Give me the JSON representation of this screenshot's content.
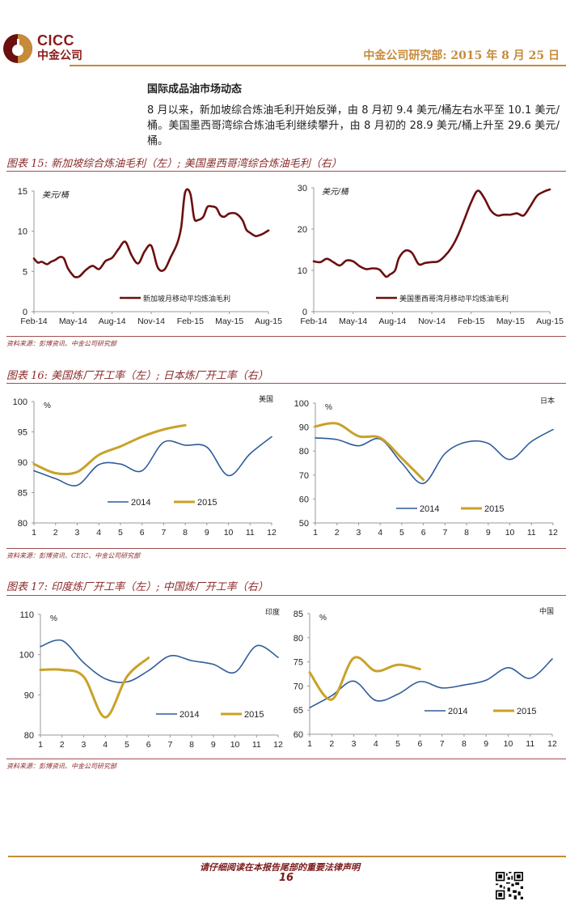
{
  "header": {
    "logo_en": "CICC",
    "logo_cn": "中金公司",
    "dept_date": "中金公司研究部: 2015 年 8 月 25 日"
  },
  "section": {
    "title": "国际成品油市场动态",
    "paragraph": "8 月以来，新加坡综合炼油毛利开始反弹，由 8 月初 9.4 美元/桶左右水平至 10.1 美元/桶。美国墨西哥湾综合炼油毛利继续攀升，由 8 月初的 28.9 美元/桶上升至 29.6 美元/桶。"
  },
  "figures": [
    {
      "title": "图表 15:  新加坡综合炼油毛利（左）; 美国墨西哥湾综合炼油毛利（右）",
      "source": "资料来源：彭博资讯、中金公司研究部"
    },
    {
      "title": "图表 16:  美国炼厂开工率（左）; 日本炼厂开工率（右）",
      "source": "资料来源：彭博资讯、CEIC、中金公司研究部"
    },
    {
      "title": "图表 17:  印度炼厂开工率（左）; 中国炼厂开工率（右）",
      "source": "资料来源：彭博资讯、中金公司研究部"
    }
  ],
  "colors": {
    "margin_line": "#6b0f0f",
    "y2014": "#2e5c9a",
    "y2015": "#c9a227",
    "accent": "#c58a3a"
  },
  "chart_data": [
    {
      "type": "line",
      "title": "新加坡月移动平均炼油毛利",
      "unit_label": "美元/桶",
      "xlabel": "",
      "ylabel": "美元/桶",
      "ylim": [
        0,
        15
      ],
      "yticks": [
        0,
        5,
        10,
        15
      ],
      "xtick_labels": [
        "Feb-14",
        "May-14",
        "Aug-14",
        "Nov-14",
        "Feb-15",
        "May-15",
        "Aug-15"
      ],
      "legend": "bottom-right",
      "series": [
        {
          "name": "新加坡月移动平均炼油毛利",
          "x": [
            0,
            0.3,
            0.6,
            1,
            1.3,
            1.6,
            2,
            2.3,
            2.6,
            3,
            3.2,
            3.5,
            4,
            4.5,
            5,
            5.5,
            6,
            6.5,
            7,
            7.5,
            8,
            8.5,
            9,
            9.5,
            10,
            10.5,
            11,
            11.3,
            11.6,
            12,
            12.3,
            12.6,
            13,
            13.3,
            13.6,
            14,
            14.3,
            14.6,
            15,
            15.5,
            16,
            16.3,
            16.6,
            17,
            17.3,
            17.6,
            18
          ],
          "values": [
            6.6,
            6.1,
            6.2,
            5.9,
            6.2,
            6.4,
            6.8,
            6.6,
            5.4,
            4.5,
            4.3,
            4.4,
            5.2,
            5.7,
            5.3,
            6.3,
            6.7,
            7.8,
            8.7,
            7.0,
            6.0,
            7.5,
            8.2,
            5.5,
            5.2,
            6.8,
            8.5,
            10.5,
            14.8,
            14.7,
            11.6,
            11.4,
            11.8,
            13.0,
            13.1,
            12.9,
            12.0,
            11.8,
            12.2,
            12.2,
            11.4,
            10.2,
            9.8,
            9.4,
            9.5,
            9.7,
            10.1
          ]
        }
      ]
    },
    {
      "type": "line",
      "title": "美国墨西哥湾月移动平均炼油毛利",
      "unit_label": "美元/桶",
      "xlabel": "",
      "ylabel": "美元/桶",
      "ylim": [
        0,
        30
      ],
      "yticks": [
        0,
        10,
        20,
        30
      ],
      "xtick_labels": [
        "Feb-14",
        "May-14",
        "Aug-14",
        "Nov-14",
        "Feb-15",
        "May-15",
        "Aug-15"
      ],
      "legend": "bottom-right",
      "series": [
        {
          "name": "美国墨西哥湾月移动平均炼油毛利",
          "x": [
            0,
            0.5,
            1,
            1.5,
            2,
            2.5,
            3,
            3.5,
            4,
            4.5,
            5,
            5.5,
            5.8,
            6.2,
            6.5,
            7,
            7.5,
            8,
            8.5,
            9,
            9.5,
            10,
            10.5,
            11,
            11.5,
            12,
            12.5,
            13,
            13.5,
            14,
            14.5,
            15,
            15.5,
            16,
            16.5,
            17,
            17.5,
            18
          ],
          "values": [
            12.2,
            12.0,
            12.8,
            12.0,
            11.2,
            12.4,
            12.2,
            11.0,
            10.3,
            10.5,
            10.2,
            8.5,
            9.0,
            10.0,
            13.0,
            14.8,
            14.2,
            11.5,
            11.8,
            12.0,
            12.2,
            13.5,
            15.5,
            18.5,
            22.5,
            26.5,
            29.3,
            27.5,
            24.5,
            23.3,
            23.5,
            23.5,
            23.8,
            23.3,
            25.5,
            28.0,
            29.0,
            29.6
          ]
        }
      ]
    },
    {
      "type": "line",
      "title": "美国炼厂开工率",
      "unit_label": "%",
      "corner_label": "美国",
      "xlabel": "",
      "ylabel": "%",
      "ylim": [
        80,
        100
      ],
      "yticks": [
        80,
        85,
        90,
        95,
        100
      ],
      "categories": [
        1,
        2,
        3,
        4,
        5,
        6,
        7,
        8,
        9,
        10,
        11,
        12
      ],
      "legend": "bottom-center",
      "series": [
        {
          "name": "2014",
          "values": [
            88.6,
            87.3,
            86.2,
            89.6,
            89.7,
            88.6,
            93.3,
            92.8,
            92.5,
            87.8,
            91.4,
            94.2
          ]
        },
        {
          "name": "2015",
          "values": [
            89.7,
            88.2,
            88.4,
            91.2,
            92.6,
            94.2,
            95.4,
            96.1
          ]
        }
      ]
    },
    {
      "type": "line",
      "title": "日本炼厂开工率",
      "unit_label": "%",
      "corner_label": "日本",
      "xlabel": "",
      "ylabel": "%",
      "ylim": [
        50,
        100
      ],
      "yticks": [
        50,
        60,
        70,
        80,
        90,
        100
      ],
      "categories": [
        1,
        2,
        3,
        4,
        5,
        6,
        7,
        8,
        9,
        10,
        11,
        12
      ],
      "legend": "bottom-center",
      "series": [
        {
          "name": "2014",
          "values": [
            85.5,
            84.8,
            82.2,
            85.0,
            75.0,
            66.5,
            79.0,
            83.8,
            83.2,
            76.5,
            84.0,
            89.0
          ]
        },
        {
          "name": "2015",
          "values": [
            90.3,
            91.5,
            86.2,
            85.5,
            77.0,
            68.0
          ]
        }
      ]
    },
    {
      "type": "line",
      "title": "印度炼厂开工率",
      "unit_label": "%",
      "corner_label": "印度",
      "xlabel": "",
      "ylabel": "%",
      "ylim": [
        80,
        110
      ],
      "yticks": [
        80,
        90,
        100,
        110
      ],
      "categories": [
        1,
        2,
        3,
        4,
        5,
        6,
        7,
        8,
        9,
        10,
        11,
        12
      ],
      "legend": "bottom-right",
      "series": [
        {
          "name": "2014",
          "values": [
            102.0,
            103.5,
            98.0,
            94.0,
            93.2,
            96.0,
            99.7,
            98.5,
            97.6,
            95.6,
            102.2,
            99.3
          ]
        },
        {
          "name": "2015",
          "values": [
            96.2,
            96.2,
            94.5,
            84.4,
            94.5,
            99.2
          ]
        }
      ]
    },
    {
      "type": "line",
      "title": "中国炼厂开工率",
      "unit_label": "%",
      "corner_label": "中国",
      "xlabel": "",
      "ylabel": "%",
      "ylim": [
        60,
        85
      ],
      "yticks": [
        60,
        65,
        70,
        75,
        80,
        85
      ],
      "categories": [
        1,
        2,
        3,
        4,
        5,
        6,
        7,
        8,
        9,
        10,
        11,
        12
      ],
      "legend": "bottom-right",
      "series": [
        {
          "name": "2014",
          "values": [
            65.5,
            68.0,
            71.0,
            67.0,
            68.3,
            70.9,
            69.6,
            70.2,
            71.2,
            73.8,
            71.6,
            75.6
          ]
        },
        {
          "name": "2015",
          "values": [
            72.8,
            67.2,
            75.8,
            73.1,
            74.4,
            73.5
          ]
        }
      ]
    }
  ],
  "footer": {
    "note": "请仔细阅读在本报告尾部的重要法律声明",
    "page_number": "16"
  }
}
